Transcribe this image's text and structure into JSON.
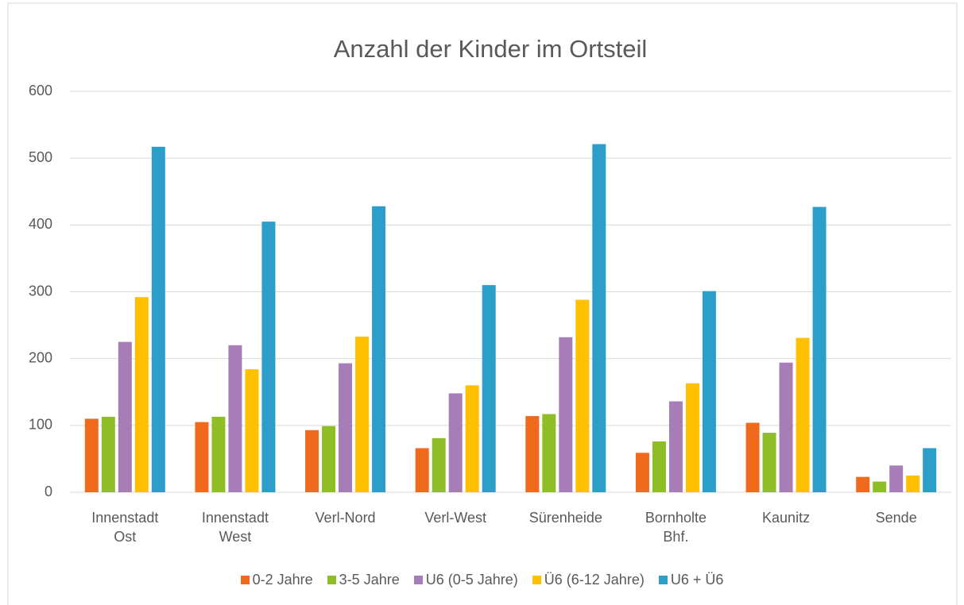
{
  "chart_data": {
    "type": "bar",
    "title": "Anzahl der Kinder im Ortsteil",
    "categories": [
      "Innenstadt Ost",
      "Innenstadt West",
      "Verl-Nord",
      "Verl-West",
      "Sürenheide",
      "Bornholte Bhf.",
      "Kaunitz",
      "Sende"
    ],
    "series": [
      {
        "name": "0-2 Jahre",
        "color": "#ef6a1c",
        "values": [
          110,
          105,
          93,
          66,
          114,
          59,
          104,
          23
        ]
      },
      {
        "name": "3-5 Jahre",
        "color": "#8fbd25",
        "values": [
          113,
          113,
          99,
          81,
          117,
          76,
          89,
          16
        ]
      },
      {
        "name": "U6 (0-5 Jahre)",
        "color": "#a67db6",
        "values": [
          225,
          220,
          193,
          148,
          232,
          136,
          194,
          40
        ]
      },
      {
        "name": "Ü6 (6-12 Jahre)",
        "color": "#ffc000",
        "values": [
          292,
          184,
          233,
          160,
          288,
          163,
          231,
          25
        ]
      },
      {
        "name": "U6 + Ü6",
        "color": "#2b9fc9",
        "values": [
          517,
          405,
          428,
          310,
          521,
          301,
          427,
          66
        ]
      }
    ],
    "ylim": [
      0,
      600
    ],
    "yticks": [
      0,
      100,
      200,
      300,
      400,
      500,
      600
    ],
    "grid": true,
    "legend": "bottom"
  }
}
